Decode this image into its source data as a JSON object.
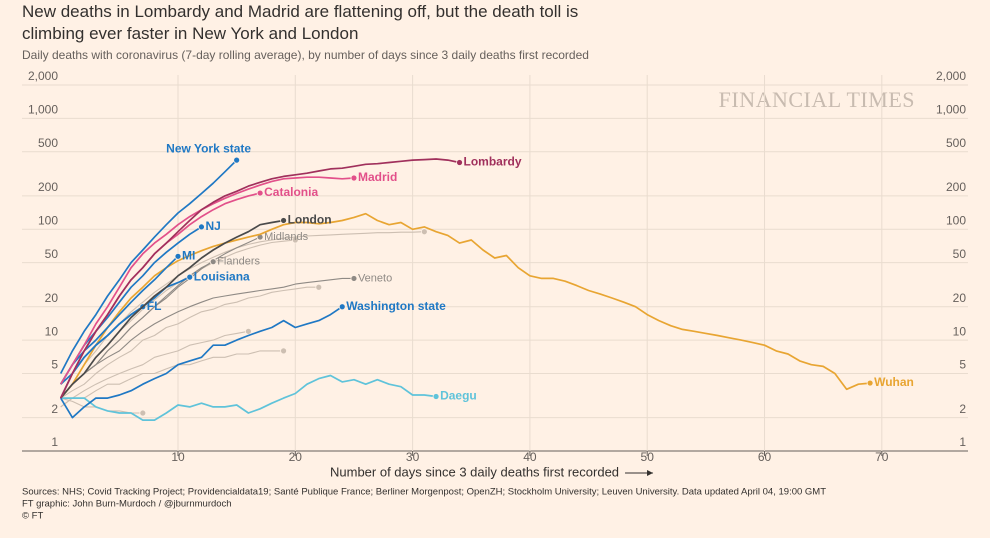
{
  "chart_data": {
    "type": "line",
    "title": "New deaths in Lombardy and Madrid are flattening off, but the death toll is climbing ever faster in New York and London",
    "subtitle": "Daily deaths with coronavirus (7-day rolling average), by number of days since 3 daily deaths first recorded",
    "watermark": "FINANCIAL TIMES",
    "x_label": "Number of days since 3 daily deaths first recorded",
    "source": "Sources: NHS; Covid Tracking Project; Providencialdata19; Santé Publique France; Berliner Morgenpost; OpenZH; Stockholm University; Leuven University. Data updated April 04, 19:00 GMT",
    "credit": "FT graphic: John Burn-Murdoch / @jburnmurdoch",
    "copyright": "© FT",
    "log_y": true,
    "grid": true,
    "xlim": [
      0,
      76
    ],
    "xticks": [
      10,
      20,
      30,
      40,
      50,
      60,
      70
    ],
    "ylim": [
      1,
      2000
    ],
    "yticks": [
      1,
      2,
      5,
      10,
      20,
      50,
      100,
      200,
      500,
      {
        "value": 1000,
        "label": "1,000"
      },
      {
        "value": 2000,
        "label": "2,000"
      }
    ],
    "series": [
      {
        "color": "#cdbfb2",
        "x": [
          0,
          1,
          2,
          3,
          4,
          5,
          6,
          7,
          8,
          9,
          10,
          11,
          12,
          13,
          14,
          15,
          16,
          17,
          18,
          19,
          20
        ],
        "values": [
          3,
          4,
          5,
          7,
          9,
          12,
          15,
          19,
          23,
          28,
          33,
          38,
          44,
          50,
          56,
          62,
          67,
          72,
          76,
          78,
          80
        ]
      },
      {
        "color": "#cdbfb2",
        "x": [
          0,
          1,
          2,
          3,
          4,
          5,
          6,
          7,
          8,
          9,
          10,
          11,
          12,
          13,
          14,
          15,
          16,
          17,
          18,
          19,
          20,
          21,
          22
        ],
        "values": [
          3,
          3.5,
          4,
          5,
          6,
          7,
          8,
          10,
          11,
          13,
          14,
          16,
          18,
          19,
          21,
          22,
          24,
          25,
          27,
          28,
          29,
          30,
          30
        ]
      },
      {
        "color": "#cdbfb2",
        "x": [
          0,
          1,
          2,
          3,
          4,
          5,
          6,
          7,
          8,
          9,
          10,
          11,
          12,
          13,
          14,
          15,
          16
        ],
        "values": [
          2.5,
          3,
          3.5,
          4,
          4.5,
          5,
          5.5,
          6,
          7,
          7.5,
          8,
          9,
          9.5,
          10,
          11,
          11.5,
          12
        ]
      },
      {
        "color": "#cdbfb2",
        "x": [
          0,
          1,
          2,
          3,
          4,
          5,
          6,
          7,
          8,
          9,
          10,
          11,
          12,
          13,
          14,
          15,
          16,
          17,
          18,
          19
        ],
        "values": [
          2.5,
          3,
          3,
          3.5,
          4,
          4,
          4.5,
          5,
          5,
          5.5,
          6,
          6,
          6.5,
          7,
          7,
          7.5,
          7.5,
          8,
          8,
          8
        ]
      },
      {
        "color": "#cdbfb2",
        "x": [
          0,
          1,
          2,
          3,
          4,
          5,
          6,
          7
        ],
        "values": [
          3,
          2.8,
          2.5,
          2.5,
          2.3,
          2.3,
          2.2,
          2.2
        ]
      },
      {
        "color": "#cdbfb2",
        "x": [
          0,
          1,
          2,
          3,
          4,
          5,
          6,
          7,
          8,
          9,
          10,
          11,
          12,
          13,
          14,
          15,
          16,
          17,
          18,
          19,
          20,
          21,
          22,
          23,
          24,
          25,
          26,
          27,
          28,
          29,
          30,
          31
        ],
        "values": [
          3,
          4,
          6,
          8,
          11,
          14,
          18,
          22,
          27,
          32,
          38,
          44,
          50,
          56,
          62,
          68,
          73,
          77,
          80,
          83,
          85,
          87,
          88,
          89,
          90,
          91,
          92,
          93,
          93,
          94,
          94,
          95
        ]
      },
      {
        "name": "Midlands",
        "color": "#8f8a85",
        "x": [
          0,
          1,
          2,
          3,
          4,
          5,
          6,
          7,
          8,
          9,
          10,
          11,
          12,
          13,
          14,
          15,
          16,
          17
        ],
        "values": [
          3,
          4,
          5,
          6,
          8,
          10,
          13,
          16,
          20,
          24,
          30,
          36,
          44,
          52,
          60,
          68,
          76,
          85
        ]
      },
      {
        "name": "Flanders",
        "color": "#8f8a85",
        "x": [
          0,
          1,
          2,
          3,
          4,
          5,
          6,
          7,
          8,
          9,
          10,
          11,
          12,
          13
        ],
        "values": [
          3,
          4,
          5,
          6,
          8,
          10,
          13,
          16,
          20,
          25,
          31,
          38,
          45,
          51
        ]
      },
      {
        "name": "Veneto",
        "color": "#8f8a85",
        "x": [
          0,
          1,
          2,
          3,
          4,
          5,
          6,
          7,
          8,
          9,
          10,
          11,
          12,
          13,
          14,
          15,
          16,
          17,
          18,
          19,
          20,
          21,
          22,
          23,
          24,
          25
        ],
        "values": [
          3,
          4,
          5,
          6,
          7,
          8,
          10,
          12,
          14,
          16,
          18,
          20,
          22,
          24,
          25,
          26,
          27,
          28,
          29,
          30,
          32,
          33,
          34,
          35,
          36,
          36
        ]
      },
      {
        "name": "Daegu",
        "color": "#5fc3da",
        "x": [
          0,
          1,
          2,
          3,
          4,
          5,
          6,
          7,
          8,
          9,
          10,
          11,
          12,
          13,
          14,
          15,
          16,
          17,
          18,
          19,
          20,
          21,
          22,
          23,
          24,
          25,
          26,
          27,
          28,
          29,
          30,
          31,
          32
        ],
        "values": [
          3,
          3,
          3,
          2.5,
          2.3,
          2.2,
          2.2,
          1.9,
          1.9,
          2.2,
          2.6,
          2.5,
          2.7,
          2.5,
          2.5,
          2.6,
          2.2,
          2.4,
          2.7,
          3,
          3.3,
          4,
          4.5,
          4.8,
          4.2,
          4.4,
          4,
          4.4,
          4,
          3.8,
          3.2,
          3.2,
          3.1
        ]
      },
      {
        "name": "Wuhan",
        "color": "#e8a532",
        "x": [
          0,
          1,
          2,
          3,
          4,
          5,
          6,
          7,
          8,
          9,
          10,
          11,
          12,
          13,
          14,
          15,
          16,
          17,
          18,
          19,
          20,
          21,
          22,
          23,
          24,
          25,
          26,
          27,
          28,
          29,
          30,
          31,
          32,
          33,
          34,
          35,
          36,
          37,
          38,
          39,
          40,
          41,
          42,
          43,
          44,
          45,
          46,
          47,
          48,
          49,
          50,
          51,
          52,
          53,
          54,
          55,
          56,
          57,
          58,
          59,
          60,
          61,
          62,
          63,
          64,
          65,
          66,
          67,
          68,
          69
        ],
        "values": [
          3,
          4,
          6,
          9,
          13,
          18,
          24,
          30,
          38,
          45,
          52,
          58,
          64,
          70,
          75,
          80,
          85,
          90,
          100,
          110,
          115,
          115,
          112,
          115,
          120,
          128,
          138,
          120,
          110,
          115,
          100,
          105,
          95,
          88,
          75,
          80,
          65,
          55,
          58,
          45,
          38,
          36,
          36,
          34,
          31,
          28,
          26,
          24,
          22,
          20,
          17,
          15,
          13.5,
          12.5,
          12,
          11.5,
          11,
          10.5,
          10,
          9.5,
          9,
          8,
          7.5,
          6.5,
          6,
          5.8,
          5,
          3.6,
          4,
          4.1
        ]
      },
      {
        "name": "Washington state",
        "color": "#1f78c4",
        "x": [
          0,
          1,
          2,
          3,
          4,
          5,
          6,
          7,
          8,
          9,
          10,
          11,
          12,
          13,
          14,
          15,
          16,
          17,
          18,
          19,
          20,
          21,
          22,
          23,
          24
        ],
        "values": [
          3,
          2,
          2.5,
          3,
          3,
          3.2,
          3.5,
          4,
          4.5,
          5,
          6,
          6.5,
          7,
          9,
          9,
          10,
          11,
          12,
          13,
          15,
          13,
          14,
          15,
          17,
          20
        ]
      },
      {
        "name": "FL",
        "color": "#1f78c4",
        "x": [
          0,
          1,
          2,
          3,
          4,
          5,
          6,
          7
        ],
        "values": [
          3,
          5,
          7,
          9,
          11,
          14,
          17,
          20
        ]
      },
      {
        "name": "Louisiana",
        "color": "#1f78c4",
        "x": [
          0,
          1,
          2,
          3,
          4,
          5,
          6,
          7,
          8,
          9,
          10,
          11
        ],
        "values": [
          4,
          5,
          7,
          9,
          11,
          14,
          17,
          20,
          24,
          30,
          33,
          37
        ]
      },
      {
        "name": "MI",
        "color": "#1f78c4",
        "x": [
          0,
          1,
          2,
          3,
          4,
          5,
          6,
          7,
          8,
          9,
          10
        ],
        "values": [
          4,
          6,
          8,
          10,
          13,
          17,
          22,
          28,
          35,
          45,
          57
        ]
      },
      {
        "name": "NJ",
        "color": "#1f78c4",
        "x": [
          0,
          1,
          2,
          3,
          4,
          5,
          6,
          7,
          8,
          9,
          10,
          11,
          12
        ],
        "values": [
          4,
          6,
          9,
          12,
          16,
          22,
          30,
          38,
          50,
          62,
          75,
          90,
          105
        ]
      },
      {
        "name": "New York state",
        "color": "#1f78c4",
        "x": [
          0,
          1,
          2,
          3,
          4,
          5,
          6,
          7,
          8,
          9,
          10,
          11,
          12,
          13,
          14,
          15
        ],
        "values": [
          5,
          8,
          12,
          17,
          25,
          35,
          50,
          65,
          85,
          110,
          140,
          170,
          210,
          260,
          330,
          420
        ]
      },
      {
        "name": "London",
        "color": "#4a4a4a",
        "x": [
          0,
          1,
          2,
          3,
          4,
          5,
          6,
          7,
          8,
          9,
          10,
          11,
          12,
          13,
          14,
          15,
          16,
          17,
          18,
          19
        ],
        "values": [
          3,
          4,
          5,
          7,
          9,
          12,
          16,
          20,
          25,
          30,
          38,
          45,
          55,
          65,
          75,
          85,
          95,
          110,
          115,
          120
        ]
      },
      {
        "name": "Catalonia",
        "color": "#e2508a",
        "x": [
          0,
          1,
          2,
          3,
          4,
          5,
          6,
          7,
          8,
          9,
          10,
          11,
          12,
          13,
          14,
          15,
          16,
          17
        ],
        "values": [
          3,
          5,
          8,
          12,
          17,
          25,
          35,
          45,
          60,
          75,
          90,
          110,
          130,
          150,
          170,
          185,
          200,
          212
        ]
      },
      {
        "name": "Madrid",
        "color": "#e2508a",
        "x": [
          0,
          1,
          2,
          3,
          4,
          5,
          6,
          7,
          8,
          9,
          10,
          11,
          12,
          13,
          14,
          15,
          16,
          17,
          18,
          19,
          20,
          21,
          22,
          23,
          24,
          25
        ],
        "values": [
          4,
          6,
          9,
          14,
          20,
          30,
          45,
          60,
          75,
          90,
          110,
          130,
          150,
          170,
          190,
          210,
          230,
          250,
          270,
          285,
          290,
          295,
          295,
          290,
          285,
          290
        ]
      },
      {
        "name": "Lombardy",
        "color": "#a0305c",
        "x": [
          0,
          1,
          2,
          3,
          4,
          5,
          6,
          7,
          8,
          9,
          10,
          11,
          12,
          13,
          14,
          15,
          16,
          17,
          18,
          19,
          20,
          21,
          22,
          23,
          24,
          25,
          26,
          27,
          28,
          29,
          30,
          31,
          32,
          33,
          34
        ],
        "values": [
          3,
          5,
          8,
          12,
          17,
          25,
          35,
          45,
          60,
          75,
          95,
          120,
          150,
          175,
          200,
          220,
          245,
          265,
          285,
          300,
          310,
          320,
          335,
          350,
          355,
          370,
          385,
          390,
          400,
          410,
          420,
          425,
          430,
          420,
          400
        ]
      }
    ]
  }
}
